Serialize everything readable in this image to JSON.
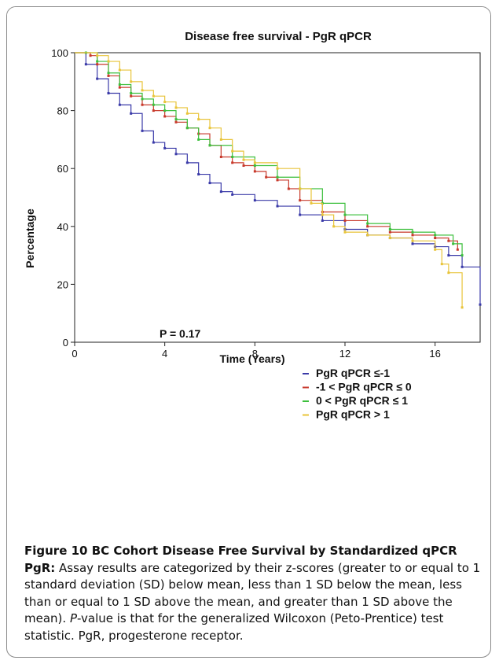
{
  "chart_data": {
    "type": "line",
    "title": "Disease free survival - PgR qPCR",
    "xlabel": "Time (Years)",
    "ylabel": "Percentage",
    "xlim": [
      0,
      18
    ],
    "ylim": [
      0,
      100
    ],
    "x_ticks": [
      "0",
      "4",
      "8",
      "12",
      "16"
    ],
    "y_ticks": [
      "0",
      "20",
      "40",
      "60",
      "80",
      "100"
    ],
    "annotation": "P = 0.17",
    "legend_position": "bottom-right, below plot",
    "series": [
      {
        "name": "PgR qPCR <u>&lt;</u>-1",
        "label": "PgR qPCR ≤-1",
        "color": "#3a3aa8",
        "x": [
          0,
          0.5,
          1.0,
          1.5,
          2.0,
          2.5,
          3.0,
          3.5,
          4.0,
          4.5,
          5.0,
          5.5,
          6.0,
          6.5,
          7.0,
          8.0,
          9.0,
          10.0,
          11.0,
          12.0,
          13.0,
          14.0,
          15.0,
          16.0,
          16.6,
          17.2,
          18.0
        ],
        "y": [
          100,
          96,
          91,
          86,
          82,
          79,
          73,
          69,
          67,
          65,
          62,
          58,
          55,
          52,
          51,
          49,
          47,
          44,
          42,
          39,
          37,
          36,
          34,
          33,
          30,
          26,
          13
        ]
      },
      {
        "name": "-1 < PgR qPCR ≤ 0",
        "label": "-1 < PgR qPCR ≤ 0",
        "color": "#c83a2c",
        "x": [
          0,
          0.7,
          1.0,
          1.5,
          2.0,
          2.5,
          3.0,
          3.5,
          4.0,
          4.5,
          5.0,
          5.5,
          6.0,
          6.5,
          7.0,
          7.5,
          8.0,
          8.5,
          9.0,
          9.5,
          10.0,
          11.0,
          12.0,
          13.0,
          14.0,
          15.0,
          16.0,
          16.6,
          17.0
        ],
        "y": [
          100,
          99,
          96,
          92,
          88,
          85,
          82,
          80,
          78,
          76,
          74,
          72,
          68,
          64,
          62,
          61,
          59,
          57,
          56,
          53,
          49,
          45,
          42,
          40,
          38,
          37,
          36,
          35,
          32
        ]
      },
      {
        "name": "0 < PgR qPCR ≤ 1",
        "label": "0 < PgR qPCR ≤ 1",
        "color": "#3cbf3c",
        "x": [
          0,
          0.5,
          1.0,
          1.5,
          2.0,
          2.5,
          3.0,
          3.5,
          4.0,
          4.5,
          5.0,
          5.5,
          6.0,
          7.0,
          8.0,
          9.0,
          10.0,
          11.0,
          12.0,
          13.0,
          14.0,
          15.0,
          16.0,
          16.8,
          17.2
        ],
        "y": [
          100,
          100,
          97,
          93,
          89,
          86,
          84,
          82,
          80,
          77,
          74,
          70,
          68,
          64,
          61,
          57,
          53,
          48,
          44,
          41,
          39,
          38,
          37,
          34,
          30
        ]
      },
      {
        "name": "PgR qPCR > 1",
        "label": "PgR qPCR > 1",
        "color": "#e8c43a",
        "x": [
          0,
          1.0,
          1.5,
          2.0,
          2.5,
          3.0,
          3.5,
          4.0,
          4.5,
          5.0,
          5.5,
          6.0,
          6.5,
          7.0,
          7.5,
          8.0,
          9.0,
          10.0,
          10.5,
          11.0,
          11.5,
          12.0,
          13.0,
          14.0,
          15.0,
          16.0,
          16.3,
          16.6,
          17.2
        ],
        "y": [
          100,
          99,
          97,
          94,
          90,
          87,
          85,
          83,
          81,
          79,
          77,
          74,
          70,
          66,
          63,
          62,
          60,
          53,
          48,
          44,
          40,
          38,
          37,
          36,
          35,
          32,
          27,
          24,
          12
        ]
      }
    ]
  },
  "caption": {
    "title": "Figure 10 BC Cohort Disease Free Survival by Standardized qPCR",
    "lead": "PgR:",
    "body": " Assay results are categorized by their z-scores (greater to or equal to 1 standard deviation (SD) below mean, less than 1 SD below the mean, less than or equal to 1 SD above the mean, and greater than 1 SD above the mean). ",
    "p_italic": "P",
    "tail": "-value is that for the generalized Wilcoxon (Peto-Prentice) test statistic. PgR, progesterone receptor."
  }
}
